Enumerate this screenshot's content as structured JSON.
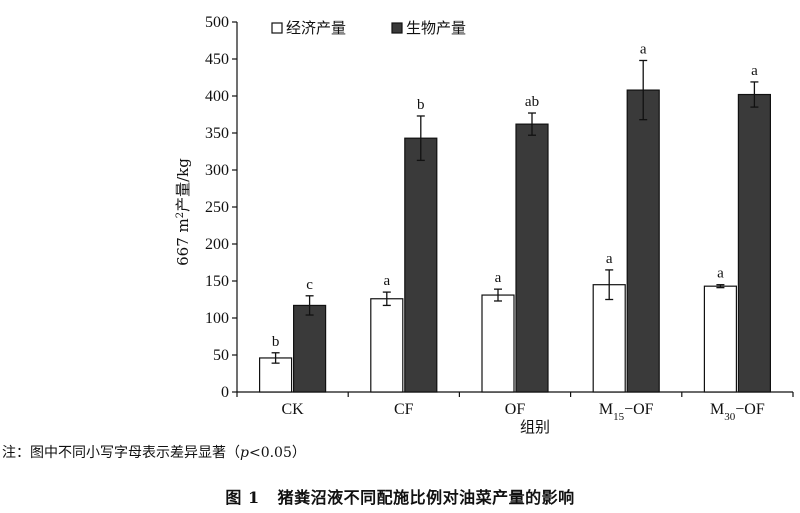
{
  "chart_data": {
    "type": "bar",
    "title": "",
    "xlabel": "组别",
    "ylabel": "667 m²产量/kg",
    "ylim": [
      0,
      500
    ],
    "yticks": [
      0,
      50,
      100,
      150,
      200,
      250,
      300,
      350,
      400,
      450,
      500
    ],
    "grid": false,
    "legend_position": "top-left",
    "categories": [
      {
        "label": "CK",
        "base": "CK",
        "sub": "",
        "suffix": ""
      },
      {
        "label": "CF",
        "base": "CF",
        "sub": "",
        "suffix": ""
      },
      {
        "label": "OF",
        "base": "OF",
        "sub": "",
        "suffix": ""
      },
      {
        "label": "M15−OF",
        "base": "M",
        "sub": "15",
        "suffix": "−OF"
      },
      {
        "label": "M30−OF",
        "base": "M",
        "sub": "30",
        "suffix": "−OF"
      }
    ],
    "series": [
      {
        "name": "经济产量",
        "color": "#ffffff",
        "values": [
          46,
          126,
          131,
          145,
          143
        ],
        "errors": [
          7,
          9,
          8,
          20,
          2
        ],
        "significance": [
          "b",
          "a",
          "a",
          "a",
          "a"
        ]
      },
      {
        "name": "生物产量",
        "color": "#3a3a3a",
        "values": [
          117,
          343,
          362,
          408,
          402
        ],
        "errors": [
          13,
          30,
          15,
          40,
          17
        ],
        "significance": [
          "c",
          "b",
          "ab",
          "a",
          "a"
        ]
      }
    ]
  },
  "note": {
    "prefix": "注：图中不同小写字母表示差异显著（",
    "p_symbol": "p",
    "suffix": "<0.05）"
  },
  "caption": {
    "number": "图 1",
    "text": "猪粪沼液不同配施比例对油菜产量的影响"
  }
}
